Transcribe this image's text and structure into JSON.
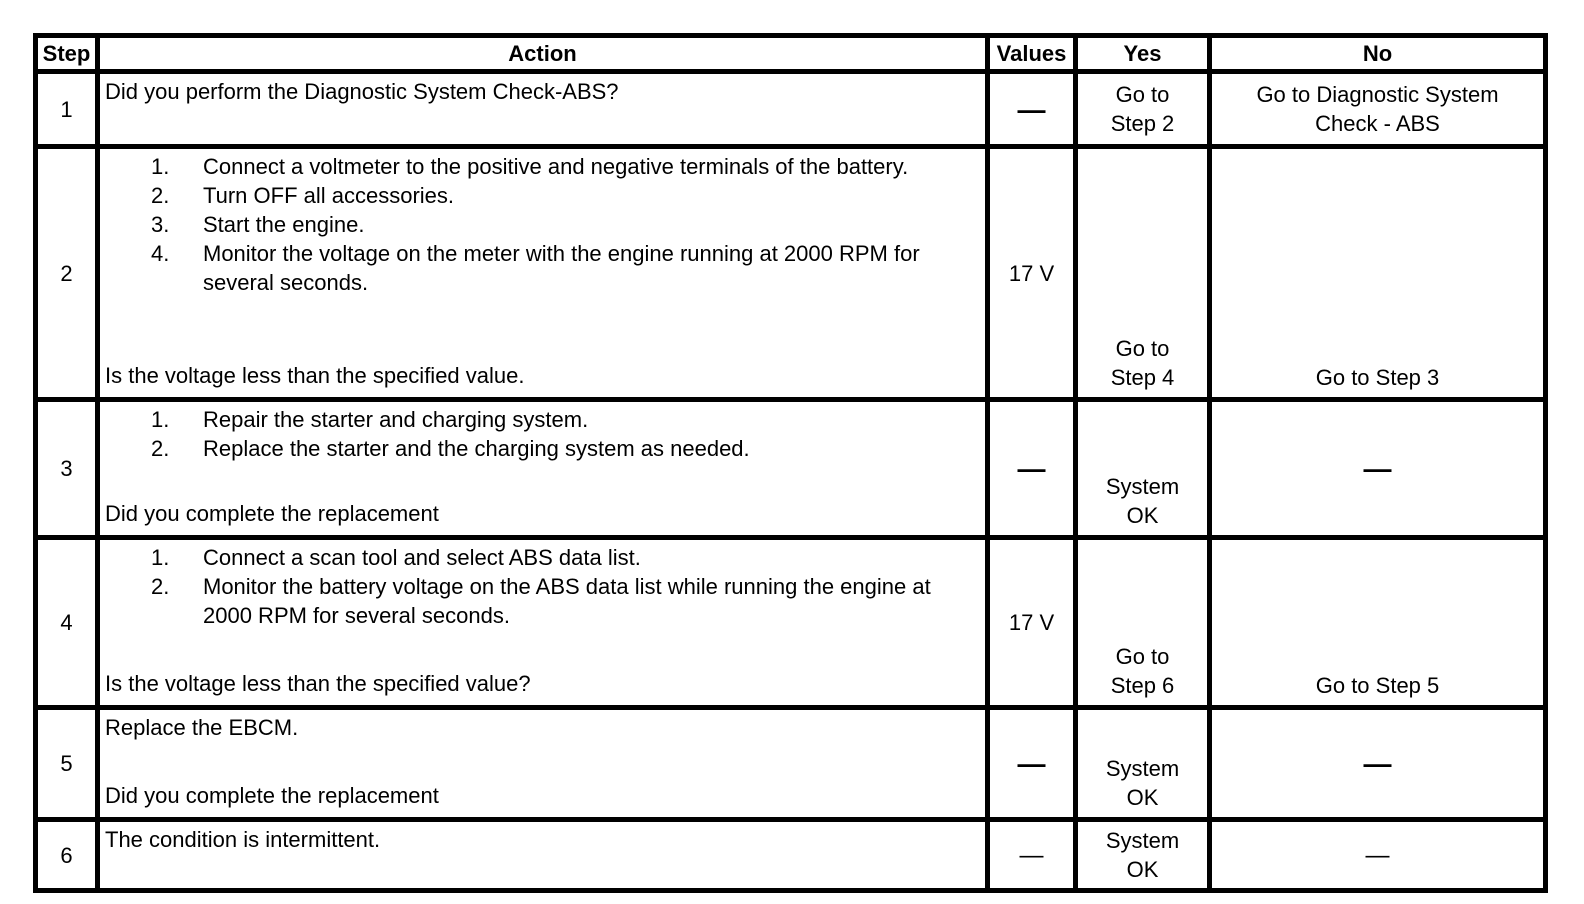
{
  "table": {
    "headers": {
      "step": "Step",
      "action": "Action",
      "values": "Values",
      "yes": "Yes",
      "no": "No"
    },
    "rows": [
      {
        "step": "1",
        "question": "Did you perform the Diagnostic System Check-ABS?",
        "values": "—",
        "yes": "Go to\nStep 2",
        "no": "Go to Diagnostic System\nCheck - ABS"
      },
      {
        "step": "2",
        "items": [
          "Connect a voltmeter to the positive and negative terminals of the battery.",
          "Turn OFF all accessories.",
          "Start the engine.",
          "Monitor the voltage on the meter with the engine running at 2000 RPM for several seconds."
        ],
        "question": "Is the voltage less than the specified value.",
        "values": "17 V",
        "yes": "Go to\nStep 4",
        "no": "Go to Step 3"
      },
      {
        "step": "3",
        "items": [
          "Repair the starter and charging system.",
          "Replace the starter and the charging system as needed."
        ],
        "question": "Did you complete the replacement",
        "values": "—",
        "yes": "System\nOK",
        "no": "—"
      },
      {
        "step": "4",
        "items": [
          "Connect a scan tool and select ABS data list.",
          "Monitor the battery voltage on the ABS data list while running the engine at 2000 RPM for several seconds."
        ],
        "question": "Is the voltage less than the specified value?",
        "values": "17 V",
        "yes": "Go to\nStep 6",
        "no": "Go to Step 5"
      },
      {
        "step": "5",
        "intro": "Replace the EBCM.",
        "question": "Did you complete the replacement",
        "values": "—",
        "yes": "System\nOK",
        "no": "—"
      },
      {
        "step": "6",
        "intro": "The condition is intermittent.",
        "values": "—",
        "yes": "System\nOK",
        "no": "—"
      }
    ]
  }
}
